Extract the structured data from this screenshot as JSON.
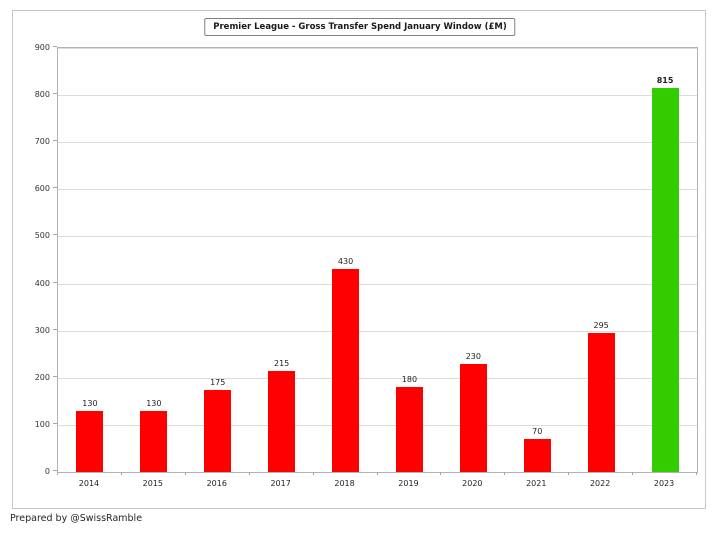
{
  "footer": "Prepared by @SwissRamble",
  "chart_data": {
    "type": "bar",
    "title": "Premier League - Gross Transfer Spend January Window (£M)",
    "categories": [
      "2014",
      "2015",
      "2016",
      "2017",
      "2018",
      "2019",
      "2020",
      "2021",
      "2022",
      "2023"
    ],
    "values": [
      130,
      130,
      175,
      215,
      430,
      180,
      230,
      70,
      295,
      815
    ],
    "bar_colors": [
      "#ff0000",
      "#ff0000",
      "#ff0000",
      "#ff0000",
      "#ff0000",
      "#ff0000",
      "#ff0000",
      "#ff0000",
      "#ff0000",
      "#33cc00"
    ],
    "highlight_index": 9,
    "data_labels": [
      "130",
      "130",
      "175",
      "215",
      "430",
      "180",
      "230",
      "70",
      "295",
      "815"
    ],
    "xlabel": "",
    "ylabel": "",
    "ylim": [
      0,
      900
    ],
    "yticks": [
      0,
      100,
      200,
      300,
      400,
      500,
      600,
      700,
      800,
      900
    ],
    "grid": "horizontal",
    "legend": "none"
  }
}
